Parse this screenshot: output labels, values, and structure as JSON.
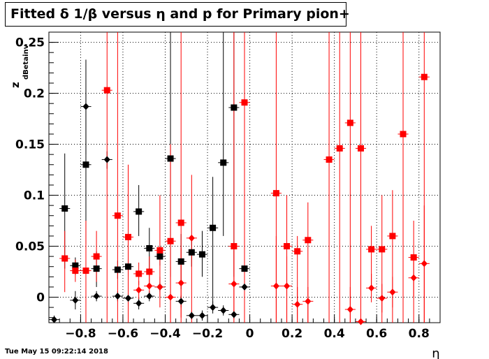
{
  "title": "Fitted δ 1/β versus η and p for Primary pion+",
  "timestamp": "Tue May 15 09:22:14 2018",
  "chart_data": {
    "type": "scatter",
    "title": "Fitted δ 1/β versus η and p for Primary pion+",
    "xlabel": "η",
    "ylabel_main": "z",
    "ylabel_sub": "dBetainv",
    "xlim": [
      -0.95,
      0.9
    ],
    "ylim": [
      -0.025,
      0.26
    ],
    "grid": true,
    "x_ticks": [
      -0.8,
      -0.6,
      -0.4,
      -0.2,
      0,
      0.2,
      0.4,
      0.6,
      0.8
    ],
    "x_tick_labels": [
      "−0.8",
      "−0.6",
      "−0.4",
      "−0.2",
      "0",
      "0.2",
      "0.4",
      "0.6",
      "0.8"
    ],
    "y_ticks": [
      0,
      0.05,
      0.1,
      0.15,
      0.2,
      0.25
    ],
    "y_tick_labels": [
      "0",
      "0.05",
      "0.1",
      "0.15",
      "0.2",
      "0.25"
    ],
    "series": [
      {
        "color": "#000000",
        "marker": "square",
        "points": [
          {
            "x": -0.875,
            "y": 0.087,
            "lo": 0.028,
            "hi": 0.141
          },
          {
            "x": -0.825,
            "y": 0.031,
            "lo": 0.022,
            "hi": 0.039
          },
          {
            "x": -0.775,
            "y": 0.13,
            "lo": 0.052,
            "hi": 0.2
          },
          {
            "x": -0.725,
            "y": 0.028,
            "lo": 0.01,
            "hi": 0.045
          },
          {
            "x": -0.625,
            "y": 0.027,
            "lo": 0.018,
            "hi": 0.036
          },
          {
            "x": -0.575,
            "y": 0.03,
            "lo": 0.021,
            "hi": 0.039
          },
          {
            "x": -0.525,
            "y": 0.084,
            "lo": 0.06,
            "hi": 0.11
          },
          {
            "x": -0.475,
            "y": 0.048,
            "lo": 0.028,
            "hi": 0.068
          },
          {
            "x": -0.425,
            "y": 0.04,
            "lo": 0.031,
            "hi": 0.05
          },
          {
            "x": -0.375,
            "y": 0.136,
            "lo": 0.02,
            "hi": 0.26
          },
          {
            "x": -0.325,
            "y": 0.035,
            "lo": 0.008,
            "hi": 0.062
          },
          {
            "x": -0.275,
            "y": 0.044,
            "lo": 0.03,
            "hi": 0.058
          },
          {
            "x": -0.225,
            "y": 0.042,
            "lo": 0.02,
            "hi": 0.065
          },
          {
            "x": -0.175,
            "y": 0.068,
            "lo": -0.01,
            "hi": 0.118
          },
          {
            "x": -0.125,
            "y": 0.132,
            "lo": 0.06,
            "hi": 0.26
          },
          {
            "x": -0.075,
            "y": 0.186,
            "lo": 0.02,
            "hi": 0.26
          },
          {
            "x": -0.025,
            "y": 0.028,
            "lo": 0.021,
            "hi": 0.035
          }
        ]
      },
      {
        "color": "#000000",
        "marker": "diamond",
        "points": [
          {
            "x": -0.925,
            "y": -0.022,
            "lo": -0.026,
            "hi": -0.018
          },
          {
            "x": -0.825,
            "y": -0.003,
            "lo": -0.012,
            "hi": 0.006
          },
          {
            "x": -0.775,
            "y": 0.187,
            "lo": 0.14,
            "hi": 0.233
          },
          {
            "x": -0.725,
            "y": 0.001,
            "lo": -0.004,
            "hi": 0.006
          },
          {
            "x": -0.675,
            "y": 0.135,
            "lo": 0.126,
            "hi": 0.143
          },
          {
            "x": -0.625,
            "y": 0.001,
            "lo": -0.004,
            "hi": 0.006
          },
          {
            "x": -0.575,
            "y": -0.001,
            "lo": -0.006,
            "hi": 0.004
          },
          {
            "x": -0.525,
            "y": -0.006,
            "lo": -0.012,
            "hi": 0.0
          },
          {
            "x": -0.475,
            "y": 0.001,
            "lo": -0.004,
            "hi": 0.006
          },
          {
            "x": -0.425,
            "y": 0.01,
            "lo": 0.005,
            "hi": 0.015
          },
          {
            "x": -0.325,
            "y": -0.004,
            "lo": -0.01,
            "hi": 0.002
          },
          {
            "x": -0.275,
            "y": -0.018,
            "lo": -0.022,
            "hi": -0.014
          },
          {
            "x": -0.225,
            "y": -0.018,
            "lo": -0.023,
            "hi": -0.013
          },
          {
            "x": -0.175,
            "y": -0.01,
            "lo": -0.016,
            "hi": -0.004
          },
          {
            "x": -0.125,
            "y": -0.013,
            "lo": -0.018,
            "hi": -0.008
          },
          {
            "x": -0.075,
            "y": -0.017,
            "lo": -0.021,
            "hi": -0.013
          },
          {
            "x": -0.025,
            "y": 0.01,
            "lo": 0.006,
            "hi": 0.014
          }
        ]
      },
      {
        "color": "#ff0000",
        "marker": "square",
        "points": [
          {
            "x": -0.875,
            "y": 0.038,
            "lo": 0.005,
            "hi": 0.065
          },
          {
            "x": -0.825,
            "y": 0.026,
            "lo": 0.015,
            "hi": 0.037
          },
          {
            "x": -0.775,
            "y": 0.026,
            "lo": -0.025,
            "hi": 0.075
          },
          {
            "x": -0.725,
            "y": 0.04,
            "lo": 0.015,
            "hi": 0.065
          },
          {
            "x": -0.675,
            "y": 0.203,
            "lo": -0.025,
            "hi": 0.26
          },
          {
            "x": -0.625,
            "y": 0.08,
            "lo": -0.025,
            "hi": 0.26
          },
          {
            "x": -0.575,
            "y": 0.059,
            "lo": -0.025,
            "hi": 0.13
          },
          {
            "x": -0.525,
            "y": 0.023,
            "lo": 0.012,
            "hi": 0.034
          },
          {
            "x": -0.475,
            "y": 0.025,
            "lo": 0.01,
            "hi": 0.04
          },
          {
            "x": -0.425,
            "y": 0.046,
            "lo": -0.01,
            "hi": 0.1
          },
          {
            "x": -0.375,
            "y": 0.055,
            "lo": -0.025,
            "hi": 0.15
          },
          {
            "x": -0.325,
            "y": 0.073,
            "lo": -0.025,
            "hi": 0.26
          },
          {
            "x": -0.075,
            "y": 0.05,
            "lo": -0.025,
            "hi": 0.26
          },
          {
            "x": -0.025,
            "y": 0.191,
            "lo": -0.025,
            "hi": 0.26
          },
          {
            "x": 0.125,
            "y": 0.102,
            "lo": -0.025,
            "hi": 0.26
          },
          {
            "x": 0.175,
            "y": 0.05,
            "lo": -0.025,
            "hi": 0.1
          },
          {
            "x": 0.225,
            "y": 0.045,
            "lo": -0.025,
            "hi": 0.06
          },
          {
            "x": 0.275,
            "y": 0.056,
            "lo": -0.025,
            "hi": 0.093
          },
          {
            "x": 0.375,
            "y": 0.135,
            "lo": -0.025,
            "hi": 0.26
          },
          {
            "x": 0.425,
            "y": 0.146,
            "lo": -0.025,
            "hi": 0.26
          },
          {
            "x": 0.475,
            "y": 0.171,
            "lo": -0.025,
            "hi": 0.26
          },
          {
            "x": 0.525,
            "y": 0.146,
            "lo": -0.025,
            "hi": 0.26
          },
          {
            "x": 0.575,
            "y": 0.047,
            "lo": 0.01,
            "hi": 0.07
          },
          {
            "x": 0.625,
            "y": 0.047,
            "lo": -0.025,
            "hi": 0.1
          },
          {
            "x": 0.675,
            "y": 0.06,
            "lo": -0.025,
            "hi": 0.105
          },
          {
            "x": 0.725,
            "y": 0.16,
            "lo": -0.025,
            "hi": 0.26
          },
          {
            "x": 0.775,
            "y": 0.039,
            "lo": -0.025,
            "hi": 0.075
          },
          {
            "x": 0.825,
            "y": 0.216,
            "lo": -0.025,
            "hi": 0.26
          }
        ]
      },
      {
        "color": "#ff0000",
        "marker": "diamond",
        "points": [
          {
            "x": -0.525,
            "y": 0.007,
            "lo": -0.002,
            "hi": 0.016
          },
          {
            "x": -0.475,
            "y": 0.011,
            "lo": 0.0,
            "hi": 0.022
          },
          {
            "x": -0.425,
            "y": 0.01,
            "lo": 0.0,
            "hi": 0.02
          },
          {
            "x": -0.375,
            "y": 0.0,
            "lo": -0.025,
            "hi": 0.03
          },
          {
            "x": -0.325,
            "y": 0.014,
            "lo": -0.02,
            "hi": 0.048
          },
          {
            "x": -0.275,
            "y": 0.058,
            "lo": -0.025,
            "hi": 0.12
          },
          {
            "x": -0.075,
            "y": 0.013,
            "lo": -0.02,
            "hi": 0.046
          },
          {
            "x": 0.125,
            "y": 0.011,
            "lo": -0.025,
            "hi": 0.06
          },
          {
            "x": 0.175,
            "y": 0.011,
            "lo": -0.025,
            "hi": 0.04
          },
          {
            "x": 0.225,
            "y": -0.007,
            "lo": -0.025,
            "hi": 0.01
          },
          {
            "x": 0.275,
            "y": -0.004,
            "lo": -0.025,
            "hi": 0.01
          },
          {
            "x": 0.475,
            "y": -0.012,
            "lo": -0.025,
            "hi": 0.01
          },
          {
            "x": 0.525,
            "y": -0.024,
            "lo": -0.025,
            "hi": 0.0
          },
          {
            "x": 0.575,
            "y": 0.009,
            "lo": -0.005,
            "hi": 0.023
          },
          {
            "x": 0.625,
            "y": -0.001,
            "lo": -0.015,
            "hi": 0.013
          },
          {
            "x": 0.675,
            "y": 0.005,
            "lo": -0.01,
            "hi": 0.02
          },
          {
            "x": 0.775,
            "y": 0.019,
            "lo": 0.0,
            "hi": 0.038
          },
          {
            "x": 0.825,
            "y": 0.033,
            "lo": -0.025,
            "hi": 0.09
          }
        ]
      }
    ]
  }
}
